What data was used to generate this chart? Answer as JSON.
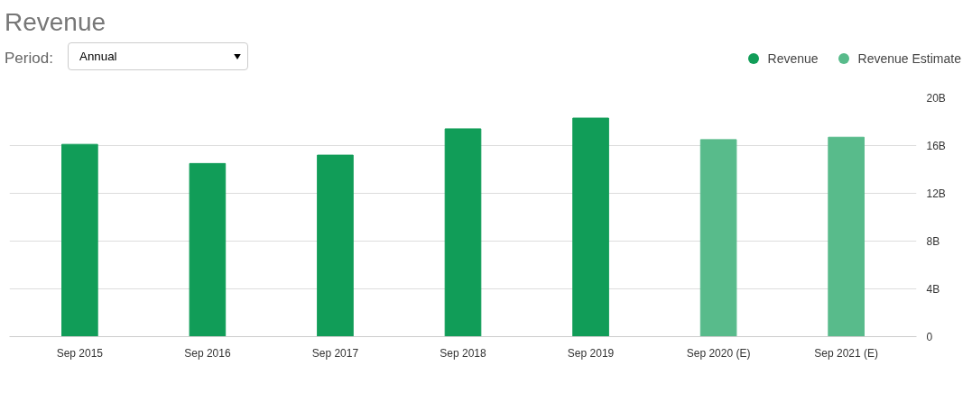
{
  "chart_data": {
    "type": "bar",
    "title": "Revenue",
    "categories": [
      "Sep 2015",
      "Sep 2016",
      "Sep 2017",
      "Sep 2018",
      "Sep 2019",
      "Sep 2020 (E)",
      "Sep 2021 (E)"
    ],
    "series": [
      {
        "name": "Revenue",
        "color": "#119d58",
        "values": [
          16.1,
          14.5,
          15.2,
          17.4,
          18.3,
          null,
          null
        ]
      },
      {
        "name": "Revenue Estimate",
        "color": "#58bb8b",
        "values": [
          null,
          null,
          null,
          null,
          null,
          16.5,
          16.7
        ]
      }
    ],
    "ylim": [
      0,
      20
    ],
    "yticks": [
      {
        "value": 0,
        "label": "0"
      },
      {
        "value": 4,
        "label": "4B"
      },
      {
        "value": 8,
        "label": "8B"
      },
      {
        "value": 12,
        "label": "12B"
      },
      {
        "value": 16,
        "label": "16B"
      },
      {
        "value": 20,
        "label": "20B"
      }
    ],
    "grid": "y",
    "legend": "top right",
    "annotations": [
      "Period:",
      "Annual"
    ]
  }
}
